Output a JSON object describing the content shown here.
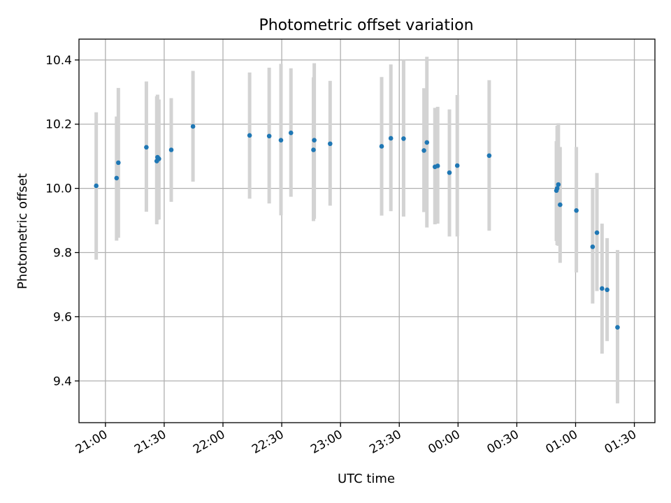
{
  "chart_data": {
    "type": "scatter",
    "title": "Photometric offset variation",
    "xlabel": "UTC time",
    "ylabel": "Photometric offset",
    "x_unit": "minutes",
    "xlim": [
      -13.5,
      280.5
    ],
    "ylim": [
      9.27,
      10.465
    ],
    "grid": true,
    "colors": {
      "point": "#1f77b4",
      "errorbar": "#d3d3d3"
    },
    "x_ticks": [
      {
        "value": 0,
        "label": "21:00"
      },
      {
        "value": 30,
        "label": "21:30"
      },
      {
        "value": 60,
        "label": "22:00"
      },
      {
        "value": 90,
        "label": "22:30"
      },
      {
        "value": 120,
        "label": "23:00"
      },
      {
        "value": 150,
        "label": "23:30"
      },
      {
        "value": 180,
        "label": "00:00"
      },
      {
        "value": 210,
        "label": "00:30"
      },
      {
        "value": 240,
        "label": "01:00"
      },
      {
        "value": 270,
        "label": "01:30"
      }
    ],
    "y_ticks": [
      {
        "value": 9.4,
        "label": "9.4"
      },
      {
        "value": 9.6,
        "label": "9.6"
      },
      {
        "value": 9.8,
        "label": "9.8"
      },
      {
        "value": 10.0,
        "label": "10.0"
      },
      {
        "value": 10.2,
        "label": "10.2"
      },
      {
        "value": 10.4,
        "label": "10.4"
      }
    ],
    "points": [
      {
        "x": -4.7,
        "y": 10.008,
        "lo": 9.778,
        "hi": 10.237
      },
      {
        "x": 5.7,
        "y": 10.032,
        "lo": 9.837,
        "hi": 10.224
      },
      {
        "x": 6.6,
        "y": 10.08,
        "lo": 9.846,
        "hi": 10.313
      },
      {
        "x": 20.9,
        "y": 10.128,
        "lo": 9.927,
        "hi": 10.333
      },
      {
        "x": 26.2,
        "y": 10.085,
        "lo": 9.888,
        "hi": 10.287
      },
      {
        "x": 26.6,
        "y": 10.097,
        "lo": 9.902,
        "hi": 10.292
      },
      {
        "x": 27.3,
        "y": 10.092,
        "lo": 9.903,
        "hi": 10.277
      },
      {
        "x": 33.6,
        "y": 10.12,
        "lo": 9.958,
        "hi": 10.281
      },
      {
        "x": 44.7,
        "y": 10.193,
        "lo": 10.021,
        "hi": 10.366
      },
      {
        "x": 73.6,
        "y": 10.165,
        "lo": 9.968,
        "hi": 10.361
      },
      {
        "x": 83.6,
        "y": 10.163,
        "lo": 9.953,
        "hi": 10.376
      },
      {
        "x": 89.6,
        "y": 10.15,
        "lo": 9.916,
        "hi": 10.388
      },
      {
        "x": 94.7,
        "y": 10.173,
        "lo": 9.974,
        "hi": 10.374
      },
      {
        "x": 106.2,
        "y": 10.12,
        "lo": 9.898,
        "hi": 10.346
      },
      {
        "x": 106.6,
        "y": 10.15,
        "lo": 9.905,
        "hi": 10.39
      },
      {
        "x": 114.7,
        "y": 10.139,
        "lo": 9.946,
        "hi": 10.335
      },
      {
        "x": 141.0,
        "y": 10.131,
        "lo": 9.915,
        "hi": 10.347
      },
      {
        "x": 145.7,
        "y": 10.156,
        "lo": 9.929,
        "hi": 10.386
      },
      {
        "x": 152.2,
        "y": 10.155,
        "lo": 9.912,
        "hi": 10.4
      },
      {
        "x": 162.6,
        "y": 10.118,
        "lo": 9.926,
        "hi": 10.312
      },
      {
        "x": 164.1,
        "y": 10.143,
        "lo": 9.878,
        "hi": 10.41
      },
      {
        "x": 168.2,
        "y": 10.067,
        "lo": 9.888,
        "hi": 10.251
      },
      {
        "x": 169.6,
        "y": 10.07,
        "lo": 9.89,
        "hi": 10.254
      },
      {
        "x": 175.6,
        "y": 10.049,
        "lo": 9.85,
        "hi": 10.246
      },
      {
        "x": 179.6,
        "y": 10.071,
        "lo": 9.85,
        "hi": 10.291
      },
      {
        "x": 195.9,
        "y": 10.102,
        "lo": 9.868,
        "hi": 10.337
      },
      {
        "x": 230.2,
        "y": 9.993,
        "lo": 9.836,
        "hi": 10.147
      },
      {
        "x": 230.6,
        "y": 10.0,
        "lo": 9.823,
        "hi": 10.195
      },
      {
        "x": 231.2,
        "y": 10.012,
        "lo": 9.821,
        "hi": 10.203
      },
      {
        "x": 232.1,
        "y": 9.949,
        "lo": 9.768,
        "hi": 10.129
      },
      {
        "x": 240.4,
        "y": 9.931,
        "lo": 9.738,
        "hi": 10.129
      },
      {
        "x": 248.7,
        "y": 9.818,
        "lo": 9.641,
        "hi": 9.998
      },
      {
        "x": 250.9,
        "y": 9.862,
        "lo": 9.68,
        "hi": 10.048
      },
      {
        "x": 253.5,
        "y": 9.688,
        "lo": 9.485,
        "hi": 9.89
      },
      {
        "x": 256.1,
        "y": 9.684,
        "lo": 9.524,
        "hi": 9.845
      },
      {
        "x": 261.4,
        "y": 9.567,
        "lo": 9.33,
        "hi": 9.808
      }
    ]
  }
}
